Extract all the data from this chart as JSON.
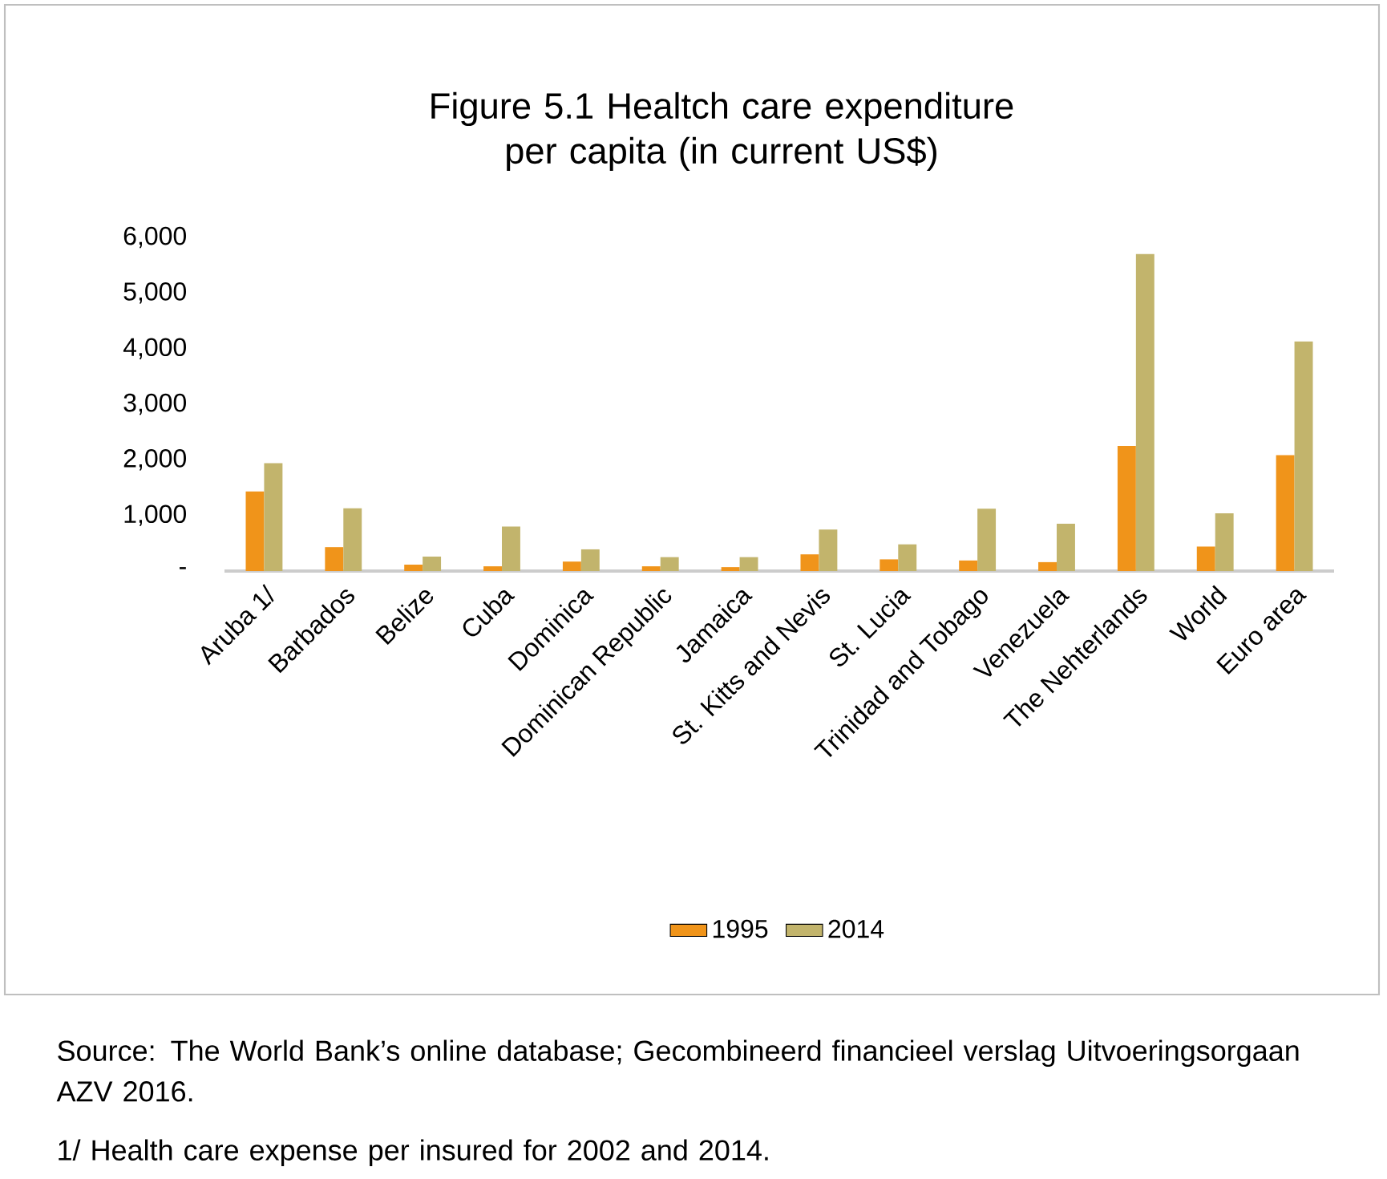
{
  "chart_data": {
    "type": "bar",
    "title": "Figure 5.1 Healtch care expenditure per capita (in current US$)",
    "categories": [
      "Aruba 1/",
      "Barbados",
      "Belize",
      "Cuba",
      "Dominica",
      "Dominican Republic",
      "Jamaica",
      "St. Kitts and Nevis",
      "St. Lucia",
      "Trinidad and Tobago",
      "Venezuela",
      "The Nehterlands",
      "World",
      "Euro area"
    ],
    "series": [
      {
        "name": "1995",
        "color": "#f0941a",
        "values": [
          1430,
          430,
          115,
          85,
          170,
          85,
          70,
          300,
          210,
          190,
          160,
          2250,
          440,
          2085
        ]
      },
      {
        "name": "2014",
        "color": "#c2b46c",
        "values": [
          1940,
          1130,
          260,
          800,
          390,
          250,
          250,
          745,
          480,
          1120,
          850,
          5700,
          1040,
          4130
        ]
      }
    ],
    "ylim": [
      0,
      6000
    ],
    "yticks": [
      {
        "value": 0,
        "label": "-"
      },
      {
        "value": 1000,
        "label": "1,000"
      },
      {
        "value": 2000,
        "label": "2,000"
      },
      {
        "value": 3000,
        "label": "3,000"
      },
      {
        "value": 4000,
        "label": "4,000"
      },
      {
        "value": 5000,
        "label": "5,000"
      },
      {
        "value": 6000,
        "label": "6,000"
      }
    ],
    "legend": "bottom",
    "annotations": [
      "Source: The World Bank’s online database; Gecombineerd financieel verslag Uitvoeringsorgaan AZV 2016.",
      "1/ Health care expense per insured for 2002 and 2014."
    ]
  }
}
